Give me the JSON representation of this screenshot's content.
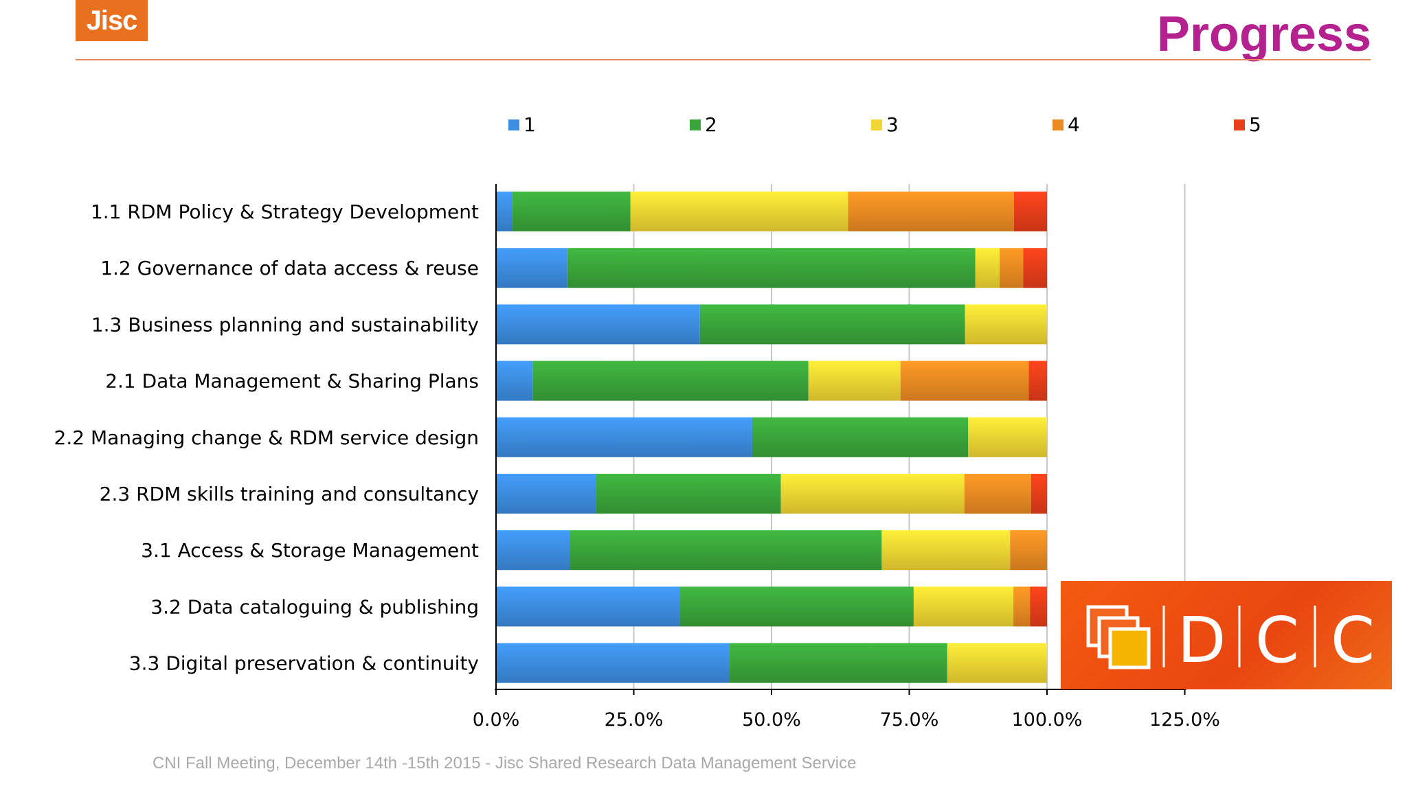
{
  "header": {
    "logo_text": "Jisc",
    "title": "Progress"
  },
  "footer": {
    "text": "CNI Fall Meeting, December 14th -15th 2015 - Jisc Shared Research Data Management Service"
  },
  "dcc_logo": {
    "letters": [
      "D",
      "C",
      "C"
    ]
  },
  "colors": {
    "1": "#3d8de0",
    "2": "#3aa53a",
    "3": "#f2d532",
    "4": "#ec8a22",
    "5": "#e83e1a",
    "title": "#b5218e",
    "logo": "#e8701e"
  },
  "chart_data": {
    "type": "bar",
    "orientation": "horizontal",
    "stacked": true,
    "categories": [
      "1.1 RDM Policy & Strategy Development",
      "1.2 Governance of data access & reuse",
      "1.3 Business planning and sustainability",
      "2.1 Data Management & Sharing Plans",
      "2.2 Managing change & RDM service design",
      "2.3 RDM skills training and consultancy",
      "3.1 Access & Storage Management",
      "3.2 Data cataloguing & publishing",
      "3.3 Digital preservation & continuity"
    ],
    "series": [
      {
        "name": "1",
        "color": "#3d8de0",
        "values": [
          3.0,
          13.0,
          37.0,
          6.7,
          46.5,
          18.2,
          13.4,
          33.3,
          42.4
        ]
      },
      {
        "name": "2",
        "color": "#3aa53a",
        "values": [
          21.4,
          74.0,
          48.1,
          50.0,
          39.2,
          33.5,
          56.6,
          42.5,
          39.5
        ]
      },
      {
        "name": "3",
        "color": "#f2d532",
        "values": [
          39.5,
          4.4,
          14.9,
          16.7,
          14.3,
          33.3,
          23.3,
          18.1,
          18.1
        ]
      },
      {
        "name": "4",
        "color": "#ec8a22",
        "values": [
          30.1,
          4.3,
          0,
          23.3,
          0,
          12.1,
          6.7,
          3.0,
          0
        ]
      },
      {
        "name": "5",
        "color": "#e83e1a",
        "values": [
          6.0,
          4.3,
          0,
          3.3,
          0,
          2.9,
          0,
          3.1,
          0
        ]
      }
    ],
    "xlim": [
      0,
      125
    ],
    "xticks": [
      "0.0%",
      "25.0%",
      "50.0%",
      "75.0%",
      "100.0%",
      "125.0%"
    ],
    "grid": true,
    "legend_position": "top"
  }
}
